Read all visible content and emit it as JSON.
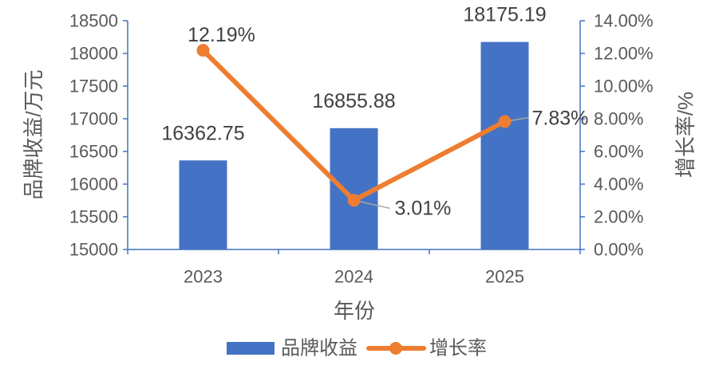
{
  "chart_data": {
    "type": "bar",
    "categories": [
      "2023",
      "2024",
      "2025"
    ],
    "xlabel": "年份",
    "ylabel": "品牌收益/万元",
    "y2label": "增长率/%",
    "ylim": [
      15000,
      18500
    ],
    "y2lim": [
      0,
      14
    ],
    "yticks": [
      "15000",
      "15500",
      "16000",
      "16500",
      "17000",
      "17500",
      "18000",
      "18500"
    ],
    "y2ticks": [
      "0.00%",
      "2.00%",
      "4.00%",
      "6.00%",
      "8.00%",
      "10.00%",
      "12.00%",
      "14.00%"
    ],
    "grid": false,
    "legend": "bottom",
    "series": [
      {
        "name": "品牌收益",
        "type": "bar",
        "secondary_axis": false,
        "color": "#4472C4",
        "values": [
          16362.75,
          16855.88,
          18175.19
        ],
        "labels": [
          "16362.75",
          "16855.88",
          "18175.19"
        ]
      },
      {
        "name": "增长率",
        "type": "line",
        "secondary_axis": true,
        "color": "#ED7D31",
        "values": [
          12.19,
          3.01,
          7.83
        ],
        "labels": [
          "12.19%",
          "3.01%",
          "7.83%"
        ]
      }
    ]
  },
  "style": {
    "axis_color": "#4472C4",
    "text_color": "#595959",
    "label_color": "#404040",
    "leader_color": "#A6A6A6"
  }
}
